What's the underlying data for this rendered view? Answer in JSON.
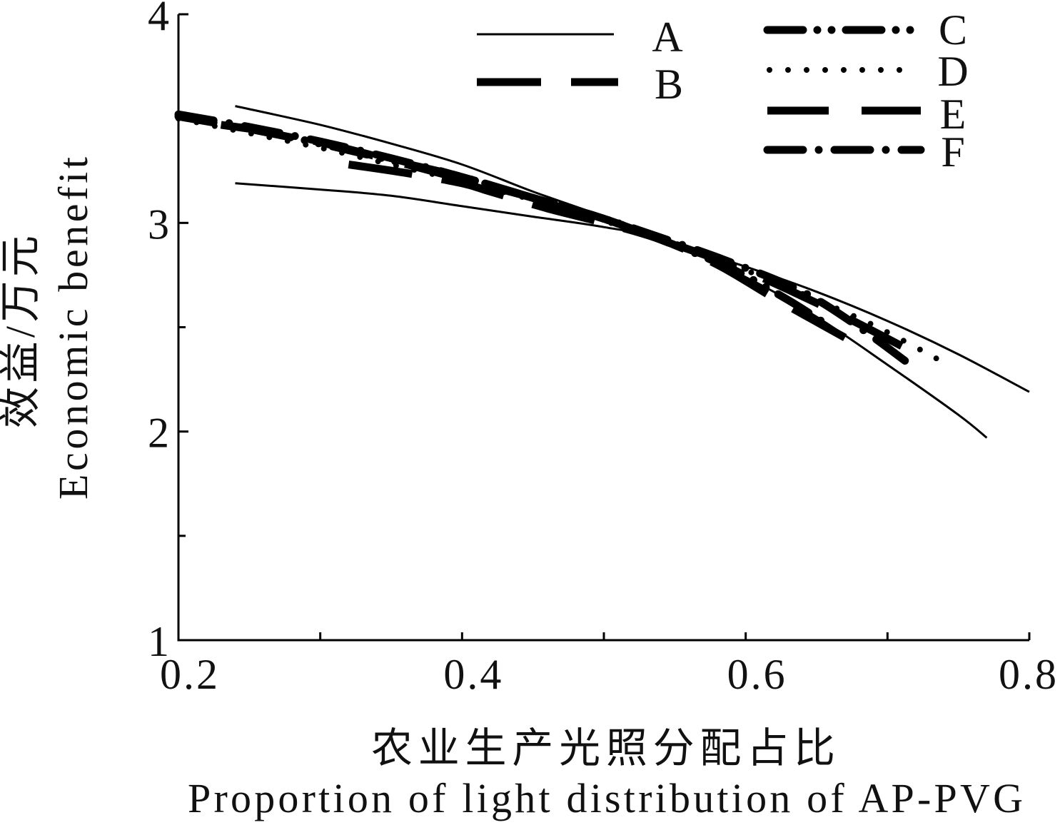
{
  "chart_data": {
    "type": "line",
    "xlabel": {
      "zh": "农业生产光照分配占比",
      "en": "Proportion of light distribution of AP-PVG"
    },
    "ylabel": {
      "zh": "效益/万元",
      "en": "Economic benefit"
    },
    "xlim": [
      0.2,
      0.8
    ],
    "ylim": [
      1,
      4
    ],
    "x_ticks": [
      0.2,
      0.3,
      0.4,
      0.5,
      0.6,
      0.7,
      0.8
    ],
    "x_tick_labels": [
      {
        "at": 0.2,
        "text": "0.2"
      },
      {
        "at": 0.4,
        "text": "0.4"
      },
      {
        "at": 0.6,
        "text": "0.6"
      },
      {
        "at": 0.8,
        "text": "0.8"
      }
    ],
    "y_ticks": [
      1,
      1.5,
      2,
      2.5,
      3,
      3.5,
      4
    ],
    "y_tick_labels": [
      {
        "at": 1,
        "text": "1"
      },
      {
        "at": 2,
        "text": "2"
      },
      {
        "at": 3,
        "text": "3"
      },
      {
        "at": 4,
        "text": "4"
      }
    ],
    "grid": false,
    "legend_position": "top-right",
    "legend": [
      "A",
      "B",
      "C",
      "D",
      "E",
      "F"
    ],
    "series": [
      {
        "name": "A",
        "x": [
          0.24,
          0.3,
          0.35,
          0.4,
          0.45,
          0.5,
          0.54,
          0.6,
          0.65,
          0.7,
          0.75,
          0.8
        ],
        "y": [
          3.56,
          3.47,
          3.38,
          3.28,
          3.15,
          3.03,
          2.92,
          2.79,
          2.67,
          2.53,
          2.37,
          2.19
        ]
      },
      {
        "name": "A",
        "x": [
          0.24,
          0.3,
          0.35,
          0.4,
          0.45,
          0.5,
          0.54,
          0.6,
          0.65,
          0.7,
          0.75,
          0.77
        ],
        "y": [
          3.19,
          3.16,
          3.13,
          3.08,
          3.03,
          2.98,
          2.92,
          2.74,
          2.55,
          2.32,
          2.08,
          1.97
        ]
      },
      {
        "name": "B",
        "x": [
          0.32,
          0.36,
          0.4,
          0.42,
          0.46,
          0.5,
          0.54,
          0.58,
          0.62,
          0.67
        ],
        "y": [
          3.28,
          3.24,
          3.19,
          3.15,
          3.07,
          3.0,
          2.92,
          2.8,
          2.64,
          2.45
        ]
      },
      {
        "name": "C",
        "x": [
          0.2,
          0.25,
          0.3,
          0.35,
          0.4,
          0.45,
          0.5,
          0.54,
          0.59,
          0.63,
          0.66
        ],
        "y": [
          3.51,
          3.45,
          3.38,
          3.3,
          3.22,
          3.12,
          3.02,
          2.92,
          2.78,
          2.63,
          2.5
        ]
      },
      {
        "name": "D",
        "x": [
          0.2,
          0.25,
          0.3,
          0.35,
          0.4,
          0.45,
          0.5,
          0.54,
          0.59,
          0.64,
          0.69,
          0.74
        ],
        "y": [
          3.5,
          3.43,
          3.36,
          3.28,
          3.2,
          3.11,
          3.01,
          2.92,
          2.8,
          2.66,
          2.51,
          2.33
        ]
      },
      {
        "name": "E",
        "x": [
          0.23,
          0.27,
          0.31,
          0.35,
          0.4,
          0.45,
          0.5,
          0.54,
          0.59,
          0.63,
          0.67,
          0.71
        ],
        "y": [
          3.47,
          3.43,
          3.37,
          3.3,
          3.21,
          3.12,
          3.02,
          2.92,
          2.8,
          2.68,
          2.55,
          2.41
        ]
      },
      {
        "name": "F",
        "x": [
          0.2,
          0.25,
          0.3,
          0.35,
          0.4,
          0.45,
          0.5,
          0.54,
          0.59,
          0.64,
          0.68,
          0.72
        ],
        "y": [
          3.52,
          3.46,
          3.39,
          3.31,
          3.22,
          3.12,
          3.02,
          2.93,
          2.81,
          2.67,
          2.5,
          2.3
        ]
      }
    ]
  }
}
